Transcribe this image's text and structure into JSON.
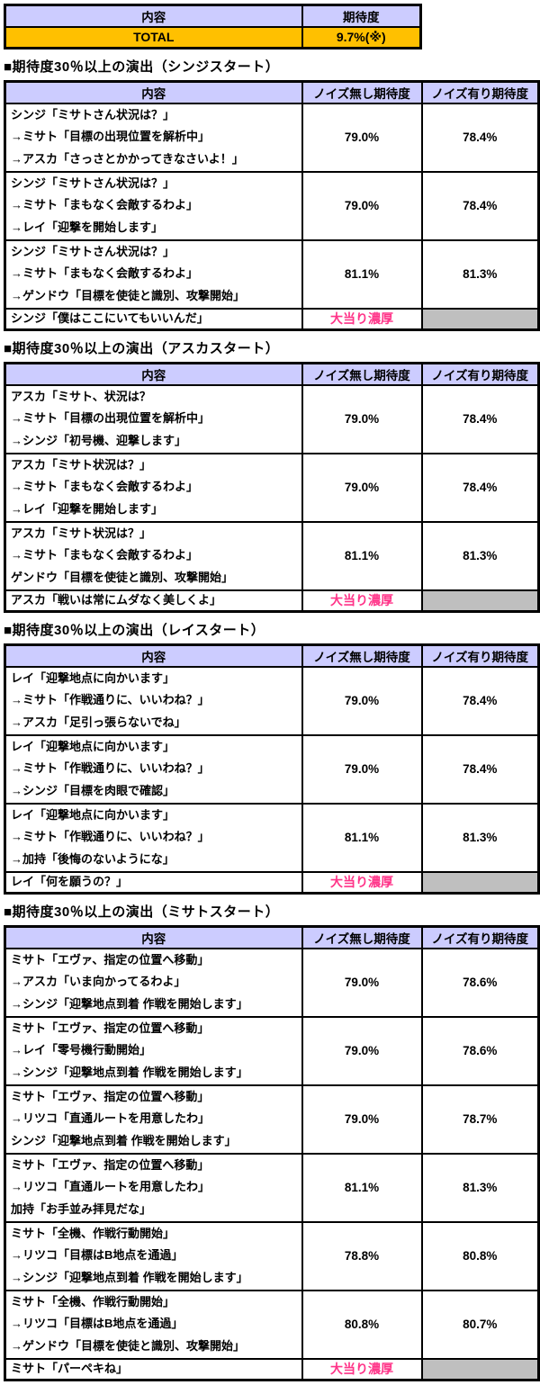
{
  "colors": {
    "header_bg": "#CCCCFF",
    "total_bg": "#FFC000",
    "jackpot_text": "#FF3388",
    "empty_cell_bg": "#BFBFBF"
  },
  "summary": {
    "header_content": "内容",
    "header_expectation": "期待度",
    "total_label": "TOTAL",
    "total_value": "9.7%(※)"
  },
  "detail_headers": [
    "内容",
    "ノイズ無し期待度",
    "ノイズ有り期待度"
  ],
  "sections": [
    {
      "title": "■期待度30％以上の演出（シンジスタート）",
      "rows": [
        {
          "lines": [
            "シンジ「ミサトさん状況は？」",
            "→ミサト「目標の出現位置を解析中」",
            "→アスカ「さっさとかかってきなさいよ！」"
          ],
          "no_noise": "79.0%",
          "noise": "78.4%"
        },
        {
          "lines": [
            "シンジ「ミサトさん状況は？」",
            "→ミサト「まもなく会敵するわよ」",
            "→レイ「迎撃を開始します」"
          ],
          "no_noise": "79.0%",
          "noise": "78.4%"
        },
        {
          "lines": [
            "シンジ「ミサトさん状況は？」",
            "→ミサト「まもなく会敵するわよ」",
            "→ゲンドウ「目標を使徒と識別、攻撃開始」"
          ],
          "no_noise": "81.1%",
          "noise": "81.3%"
        },
        {
          "lines": [
            "シンジ「僕はここにいてもいいんだ」"
          ],
          "no_noise": "大当り濃厚",
          "noise": null,
          "jackpot": true
        }
      ]
    },
    {
      "title": "■期待度30％以上の演出（アスカスタート）",
      "rows": [
        {
          "lines": [
            "アスカ「ミサト、状況は？",
            "→ミサト「目標の出現位置を解析中」",
            "→シンジ「初号機、迎撃します」"
          ],
          "no_noise": "79.0%",
          "noise": "78.4%"
        },
        {
          "lines": [
            "アスカ「ミサト状況は？」",
            "→ミサト「まもなく会敵するわよ」",
            "→レイ「迎撃を開始します」"
          ],
          "no_noise": "79.0%",
          "noise": "78.4%"
        },
        {
          "lines": [
            "アスカ「ミサト状況は？」",
            "→ミサト「まもなく会敵するわよ」",
            "ゲンドウ「目標を使徒と識別、攻撃開始」"
          ],
          "no_noise": "81.1%",
          "noise": "81.3%"
        },
        {
          "lines": [
            "アスカ「戦いは常にムダなく美しくよ」"
          ],
          "no_noise": "大当り濃厚",
          "noise": null,
          "jackpot": true
        }
      ]
    },
    {
      "title": "■期待度30％以上の演出（レイスタート）",
      "rows": [
        {
          "lines": [
            "レイ「迎撃地点に向かいます」",
            "→ミサト「作戦通りに、いいわね？」",
            "→アスカ「足引っ張らないでね」"
          ],
          "no_noise": "79.0%",
          "noise": "78.4%"
        },
        {
          "lines": [
            "レイ「迎撃地点に向かいます」",
            "→ミサト「作戦通りに、いいわね？」",
            "→シンジ「目標を肉眼で確認」"
          ],
          "no_noise": "79.0%",
          "noise": "78.4%"
        },
        {
          "lines": [
            "レイ「迎撃地点に向かいます」",
            "→ミサト「作戦通りに、いいわね？」",
            "→加持「後悔のないようにな」"
          ],
          "no_noise": "81.1%",
          "noise": "81.3%"
        },
        {
          "lines": [
            "レイ「何を願うの？」"
          ],
          "no_noise": "大当り濃厚",
          "noise": null,
          "jackpot": true
        }
      ]
    },
    {
      "title": "■期待度30％以上の演出（ミサトスタート）",
      "rows": [
        {
          "lines": [
            "ミサト「エヴァ、指定の位置へ移動」",
            "→アスカ「いま向かってるわよ」",
            "→シンジ「迎撃地点到着 作戦を開始します」"
          ],
          "no_noise": "79.0%",
          "noise": "78.6%"
        },
        {
          "lines": [
            "ミサト「エヴァ、指定の位置へ移動」",
            "→レイ「零号機行動開始」",
            "→シンジ「迎撃地点到着 作戦を開始します」"
          ],
          "no_noise": "79.0%",
          "noise": "78.6%"
        },
        {
          "lines": [
            "ミサト「エヴァ、指定の位置へ移動」",
            "→リツコ「直通ルートを用意したわ」",
            "シンジ「迎撃地点到着 作戦を開始します」"
          ],
          "no_noise": "79.0%",
          "noise": "78.7%"
        },
        {
          "lines": [
            "ミサト「エヴァ、指定の位置へ移動」",
            "→リツコ「直通ルートを用意したわ」",
            "加持「お手並み拝見だな」"
          ],
          "no_noise": "81.1%",
          "noise": "81.3%"
        },
        {
          "lines": [
            "ミサト「全機、作戦行動開始」",
            "→リツコ「目標はB地点を通過」",
            "→シンジ「迎撃地点到着 作戦を開始します」"
          ],
          "no_noise": "78.8%",
          "noise": "80.8%"
        },
        {
          "lines": [
            "ミサト「全機、作戦行動開始」",
            "→リツコ「目標はB地点を通過」",
            "→ゲンドウ「目標を使徒と識別、攻撃開始」"
          ],
          "no_noise": "80.8%",
          "noise": "80.7%"
        },
        {
          "lines": [
            "ミサト「パーペキね」"
          ],
          "no_noise": "大当り濃厚",
          "noise": null,
          "jackpot": true
        }
      ]
    }
  ]
}
